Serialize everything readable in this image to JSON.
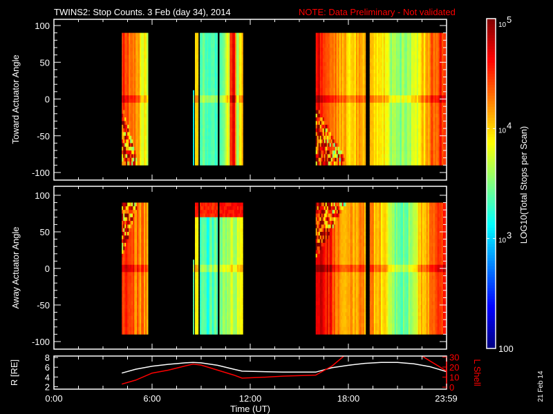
{
  "header": {
    "title": "TWINS2: Stop Counts.  3 Feb (day  34), 2014",
    "note": "NOTE: Data Preliminary - Not validated"
  },
  "colors": {
    "background": "#000000",
    "axes": "#ffffff",
    "note": "#ff0000",
    "r_line": "#ffffff",
    "l_line": "#ff0000"
  },
  "date_stamp": "21 Feb 14",
  "chart_data": [
    {
      "type": "heatmap",
      "title": "Toward Actuator Angle",
      "ylabel": "Toward Actuator Angle",
      "ylim": [
        -100,
        100
      ],
      "yticks": [
        "100",
        "50",
        "0",
        "-50",
        "-100"
      ],
      "data_angle_range": [
        -90,
        90
      ],
      "xlim_hours": [
        0,
        24
      ],
      "segments": [
        {
          "t": [
            4.15,
            5.75
          ],
          "profile": [
            4.6,
            4.2,
            3.7
          ],
          "noise_region": "low"
        },
        {
          "t": [
            8.5,
            8.56
          ],
          "profile": [
            3.3
          ],
          "angle_max": 12
        },
        {
          "t": [
            8.62,
            8.82
          ],
          "profile": [
            3.9
          ]
        },
        {
          "t": [
            8.92,
            10.0
          ],
          "profile": [
            3.4,
            3.3,
            3.4
          ]
        },
        {
          "t": [
            10.12,
            10.75
          ],
          "profile": [
            3.5,
            3.8
          ]
        },
        {
          "t": [
            10.75,
            11.15
          ],
          "profile": [
            4.4,
            4.7,
            4.3
          ]
        },
        {
          "t": [
            11.15,
            11.55
          ],
          "profile": [
            3.6,
            4.0
          ]
        },
        {
          "t": [
            16.0,
            19.05
          ],
          "profile": [
            4.7,
            4.5,
            4.1,
            4.0,
            4.2
          ],
          "noise_region": "low"
        },
        {
          "t": [
            19.3,
            23.95
          ],
          "profile": [
            4.0,
            3.9,
            3.5,
            3.6,
            3.9,
            4.3,
            4.6
          ]
        }
      ]
    },
    {
      "type": "heatmap",
      "title": "Away Actuator Angle",
      "ylabel": "Away Actuator Angle",
      "ylim": [
        -100,
        100
      ],
      "yticks": [
        "100",
        "50",
        "0",
        "-50",
        "-100"
      ],
      "data_angle_range": [
        -90,
        90
      ],
      "xlim_hours": [
        0,
        24
      ],
      "segments": [
        {
          "t": [
            4.15,
            5.75
          ],
          "profile": [
            4.5,
            4.3,
            4.2
          ],
          "noise_region": "high"
        },
        {
          "t": [
            8.5,
            8.56
          ],
          "profile": [
            3.3
          ],
          "angle_max": 12
        },
        {
          "t": [
            8.62,
            8.82
          ],
          "profile": [
            3.9
          ],
          "top_band": 4.6
        },
        {
          "t": [
            8.92,
            10.0
          ],
          "profile": [
            3.4,
            3.3,
            3.4
          ],
          "top_band": 4.5
        },
        {
          "t": [
            10.12,
            10.75
          ],
          "profile": [
            3.5,
            3.7
          ],
          "top_band": 4.6
        },
        {
          "t": [
            10.75,
            11.55
          ],
          "profile": [
            3.8,
            3.6,
            3.9
          ],
          "top_band": 4.6
        },
        {
          "t": [
            16.0,
            19.05
          ],
          "profile": [
            4.7,
            4.6,
            4.2,
            4.1,
            4.2
          ],
          "noise_region": "high"
        },
        {
          "t": [
            19.3,
            23.95
          ],
          "profile": [
            4.2,
            4.0,
            3.4,
            3.5,
            4.0,
            4.3,
            4.6
          ]
        }
      ]
    },
    {
      "type": "line",
      "ylabel_left": "R [RE]",
      "ylabel_right": "L Shell",
      "xlabel": "Time (UT)",
      "xticks": [
        "0:00",
        "6:00",
        "12:00",
        "18:00",
        "23:59"
      ],
      "xtick_hours": [
        0,
        6,
        12,
        18,
        23.98
      ],
      "yticks_left": [
        "8",
        "6",
        "4",
        "2"
      ],
      "yticks_right": [
        "30",
        "20",
        "10",
        "0"
      ],
      "ylim_left": [
        1.5,
        8.3
      ],
      "ylim_right": [
        -2,
        31
      ],
      "series": [
        {
          "name": "R",
          "axis": "left",
          "x": [
            4.15,
            5,
            6,
            7,
            8,
            8.5,
            9,
            10,
            11,
            11.5,
            14,
            16,
            17,
            18,
            19,
            20,
            21,
            22,
            23,
            24
          ],
          "y": [
            4.8,
            5.6,
            6.2,
            6.6,
            6.9,
            7.0,
            6.9,
            6.4,
            5.6,
            5.2,
            5.0,
            5.0,
            5.9,
            6.4,
            6.8,
            7.0,
            7.0,
            6.7,
            6.1,
            5.1
          ]
        },
        {
          "name": "L Shell",
          "axis": "right",
          "x": [
            4.15,
            5,
            6,
            7,
            8,
            8.5,
            9,
            10,
            11,
            11.5,
            13,
            14,
            16,
            17,
            17.8
          ],
          "y": [
            3,
            7,
            14,
            17,
            21,
            23,
            22,
            17,
            12,
            9,
            10,
            11,
            12,
            21,
            32
          ]
        },
        {
          "name": "L Shell (late)",
          "axis": "right",
          "x": [
            22.4,
            23,
            24
          ],
          "y": [
            32,
            26,
            16
          ]
        }
      ]
    }
  ],
  "colorbar": {
    "label": "LOG10(Total Stops per Scan)",
    "log_range": [
      2,
      5
    ],
    "ticks": [
      {
        "label": "10",
        "exp": "5",
        "value": 5
      },
      {
        "label": "10",
        "exp": "4",
        "value": 4
      },
      {
        "label": "10",
        "exp": "3",
        "value": 3
      },
      {
        "label": "100",
        "exp": "",
        "value": 2
      }
    ]
  }
}
